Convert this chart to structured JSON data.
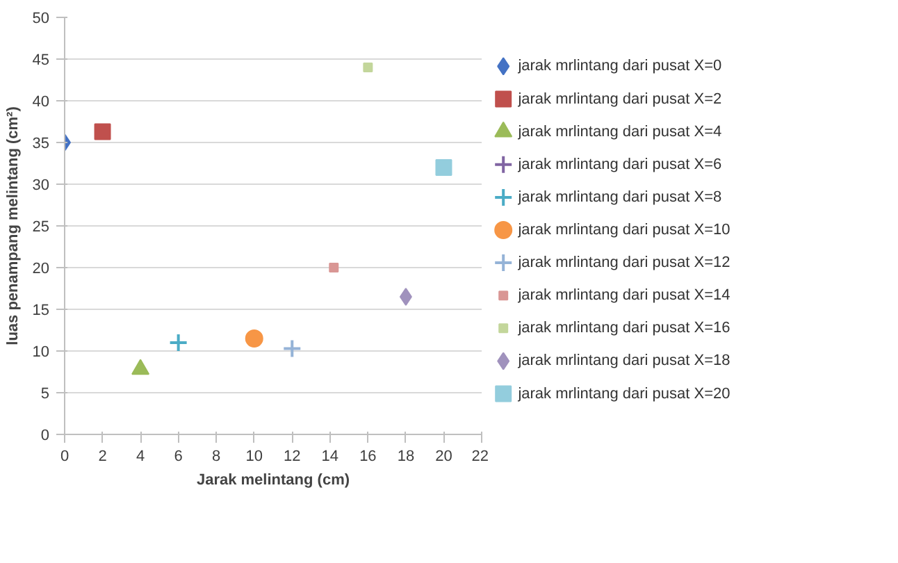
{
  "chart_data": {
    "type": "scatter",
    "xlabel": "Jarak melintang (cm)",
    "ylabel": "luas penampang melintang (cm²)",
    "xlim": [
      0,
      22
    ],
    "xticks": [
      0,
      2,
      4,
      6,
      8,
      10,
      12,
      14,
      16,
      18,
      20,
      22
    ],
    "ylim": [
      0,
      50
    ],
    "yticks": [
      0,
      5,
      10,
      15,
      20,
      25,
      30,
      35,
      40,
      45,
      50
    ],
    "grid": "y",
    "legend": "right",
    "series": [
      {
        "name": "jarak mrlintang dari pusat X=0",
        "color": "#4472c4",
        "marker": "diamond",
        "x": [
          0
        ],
        "values": [
          35
        ]
      },
      {
        "name": "jarak mrlintang dari pusat X=2",
        "color": "#c0504d",
        "marker": "square",
        "x": [
          2
        ],
        "values": [
          36.3
        ]
      },
      {
        "name": "jarak mrlintang dari pusat X=4",
        "color": "#9bbb59",
        "marker": "triangle",
        "x": [
          4
        ],
        "values": [
          7.8
        ]
      },
      {
        "name": "jarak mrlintang dari pusat X=6",
        "color": "#8064a2",
        "marker": "cross",
        "x": [
          null
        ],
        "values": [
          null
        ]
      },
      {
        "name": "jarak mrlintang dari pusat X=8",
        "color": "#4bacc6",
        "marker": "cross",
        "x": [
          6
        ],
        "values": [
          11
        ]
      },
      {
        "name": "jarak mrlintang dari pusat X=10",
        "color": "#f79646",
        "marker": "circle",
        "x": [
          10
        ],
        "values": [
          11.5
        ]
      },
      {
        "name": "jarak mrlintang dari pusat X=12",
        "color": "#95b3d7",
        "marker": "cross",
        "x": [
          12
        ],
        "values": [
          10.3
        ]
      },
      {
        "name": "jarak mrlintang dari pusat X=14",
        "color": "#d99694",
        "marker": "square",
        "x": [
          14.2
        ],
        "values": [
          20
        ]
      },
      {
        "name": "jarak mrlintang dari pusat X=16",
        "color": "#c3d69b",
        "marker": "square",
        "x": [
          16
        ],
        "values": [
          44
        ]
      },
      {
        "name": "jarak mrlintang dari pusat X=18",
        "color": "#a092bd",
        "marker": "diamond",
        "x": [
          18
        ],
        "values": [
          16.5
        ]
      },
      {
        "name": "jarak mrlintang dari pusat X=20",
        "color": "#93cddd",
        "marker": "square",
        "x": [
          20
        ],
        "values": [
          32
        ]
      }
    ]
  }
}
